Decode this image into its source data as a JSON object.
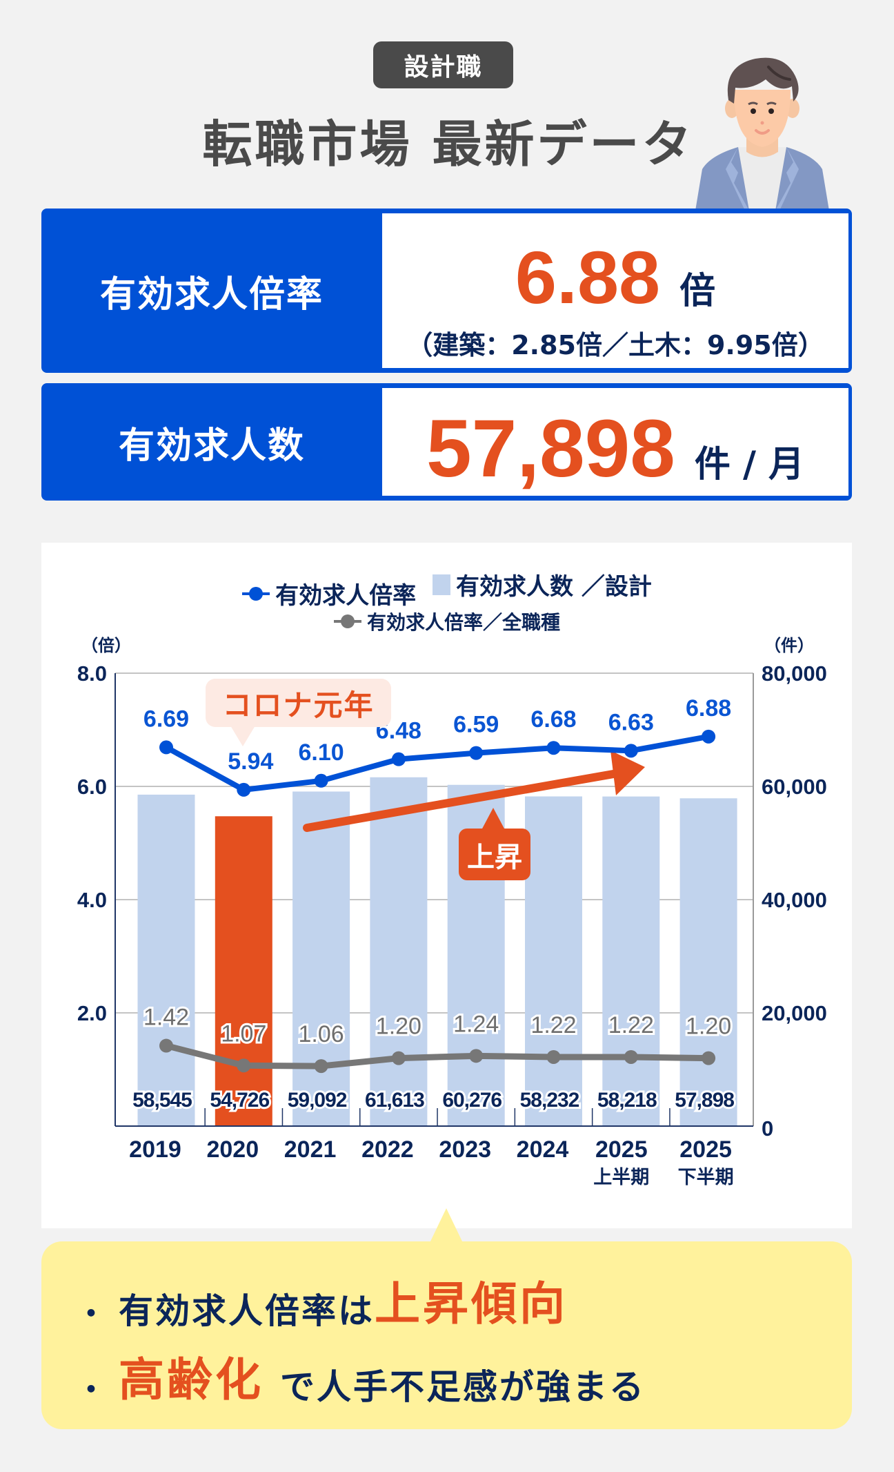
{
  "header": {
    "category_badge": "設計職",
    "title": "転職市場 最新データ",
    "avatar_icon": "person-illustration"
  },
  "stats": {
    "rate": {
      "label": "有効求人倍率",
      "value": "6.88",
      "unit": "倍",
      "breakdown": "（建築：2.85倍／土木：9.95倍）"
    },
    "openings": {
      "label": "有効求人数",
      "value": "57,898",
      "unit": "件 / 月"
    }
  },
  "colors": {
    "brand_blue": "#0051d6",
    "accent_orange": "#e4501f",
    "bar_blue": "#c1d3ed",
    "line_gray": "#777777",
    "navy_text": "#0b2559",
    "summary_yellow": "#fff29c"
  },
  "chart_legend": {
    "rate": "有効求人倍率",
    "openings": "有効求人数 ／設計",
    "all_jobs_rate": "有効求人倍率／全職種"
  },
  "chart_annotations": {
    "left_unit": "（倍）",
    "right_unit": "（件）",
    "corona": "コロナ元年",
    "rise": "上昇"
  },
  "chart_data": {
    "type": "bar",
    "title": "",
    "categories": [
      "2019",
      "2020",
      "2021",
      "2022",
      "2023",
      "2024",
      "2025 上半期",
      "2025 下半期"
    ],
    "category_lines": [
      [
        "2019",
        ""
      ],
      [
        "2020",
        ""
      ],
      [
        "2021",
        ""
      ],
      [
        "2022",
        ""
      ],
      [
        "2023",
        ""
      ],
      [
        "2024",
        ""
      ],
      [
        "2025",
        "上半期"
      ],
      [
        "2025",
        "下半期"
      ]
    ],
    "series": [
      {
        "name": "有効求人数 ／設計",
        "type": "bar",
        "axis": "right",
        "values": [
          58545,
          54726,
          59092,
          61613,
          60276,
          58232,
          58218,
          57898
        ],
        "labels": [
          "58,545",
          "54,726",
          "59,092",
          "61,613",
          "60,276",
          "58,232",
          "58,218",
          "57,898"
        ],
        "highlight_index": 1
      },
      {
        "name": "有効求人倍率",
        "type": "line",
        "axis": "left",
        "values": [
          6.69,
          5.94,
          6.1,
          6.48,
          6.59,
          6.68,
          6.63,
          6.88
        ],
        "labels": [
          "6.69",
          "5.94",
          "6.10",
          "6.48",
          "6.59",
          "6.68",
          "6.63",
          "6.88"
        ]
      },
      {
        "name": "有効求人倍率／全職種",
        "type": "line",
        "axis": "left",
        "values": [
          1.42,
          1.07,
          1.06,
          1.2,
          1.24,
          1.22,
          1.22,
          1.2
        ],
        "labels": [
          "1.42",
          "1.07",
          "1.06",
          "1.20",
          "1.24",
          "1.22",
          "1.22",
          "1.20"
        ]
      }
    ],
    "y_left": {
      "label": "（倍）",
      "ticks": [
        "8.0",
        "6.0",
        "4.0",
        "2.0"
      ],
      "range": [
        0,
        8
      ]
    },
    "y_right": {
      "label": "（件）",
      "ticks": [
        "80,000",
        "60,000",
        "40,000",
        "20,000",
        "0"
      ],
      "range": [
        0,
        80000
      ]
    },
    "grid": true,
    "legend_position": "top",
    "annotations": [
      "コロナ元年",
      "上昇"
    ]
  },
  "summary": {
    "bullet": "・",
    "line1_text": "有効求人倍率は",
    "line1_highlight": "上昇傾向",
    "line2_highlight": "高齢化",
    "line2_text": "で人手不足感が強まる"
  }
}
